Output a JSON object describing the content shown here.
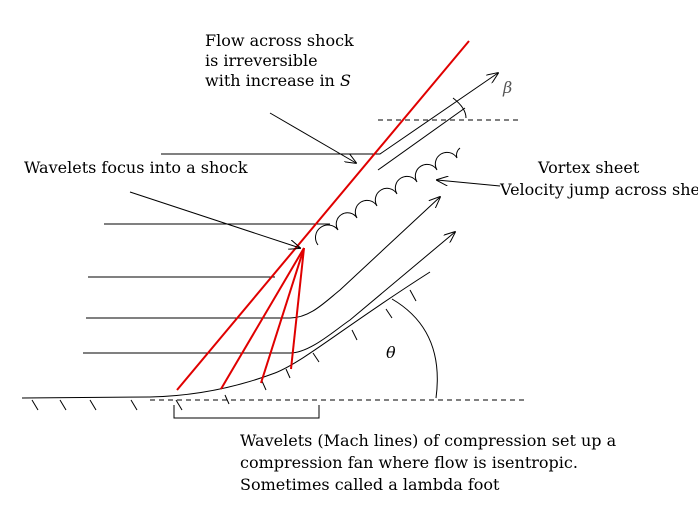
{
  "labels": {
    "irreversible": [
      "Flow across shock",
      "is irreversible",
      "with increase in "
    ],
    "irreversible_symbol": "S",
    "focus": "Wavelets focus into a shock",
    "vortex": [
      "Vortex sheet",
      "Velocity jump across sheet"
    ],
    "fan": [
      "Wavelets (Mach lines) of compression set up a",
      "compression fan where flow is isentropic.",
      "Sometimes called a lambda foot"
    ],
    "beta": "β",
    "theta": "θ"
  },
  "colors": {
    "shock": "#e00000",
    "ink": "#000000"
  }
}
